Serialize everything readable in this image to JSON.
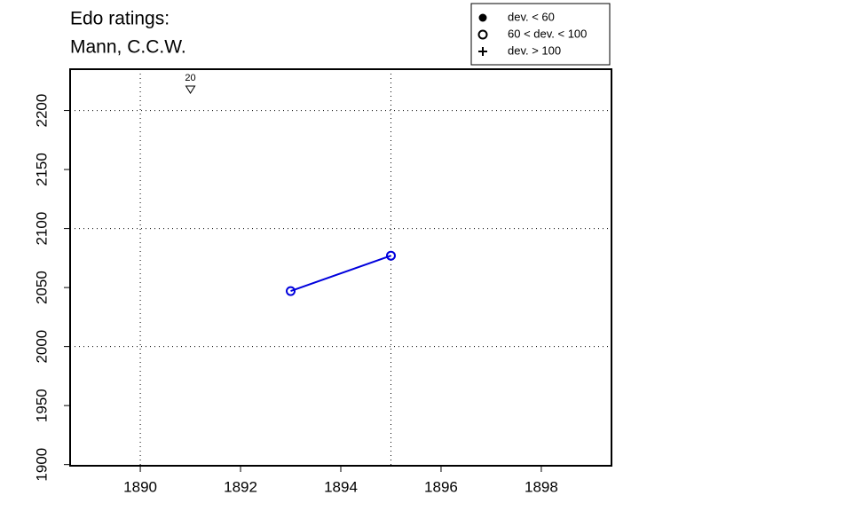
{
  "chart_data": {
    "type": "line",
    "title": [
      "Edo ratings:",
      "Mann, C.C.W."
    ],
    "x": [
      1893,
      1895
    ],
    "series": [
      {
        "color": "#0000dd",
        "marker": "open",
        "values": [
          2047,
          2077
        ]
      }
    ],
    "xlim": [
      1888.6,
      1899.4
    ],
    "ylim": [
      1899,
      2235
    ],
    "xticks": [
      1890,
      1892,
      1894,
      1896,
      1898
    ],
    "yticks": [
      1900,
      1950,
      2000,
      2050,
      2100,
      2150,
      2200
    ],
    "xgrid": [
      1890,
      1895
    ],
    "ygrid": [
      2000,
      2100,
      2200
    ],
    "annotations": [
      {
        "x": 1891,
        "text": "20"
      }
    ],
    "legend": [
      {
        "label": "dev. < 60",
        "marker": "filled"
      },
      {
        "label": "60 < dev. < 100",
        "marker": "open"
      },
      {
        "label": "dev. > 100",
        "marker": "plus"
      }
    ],
    "legend_position": "top-right"
  }
}
